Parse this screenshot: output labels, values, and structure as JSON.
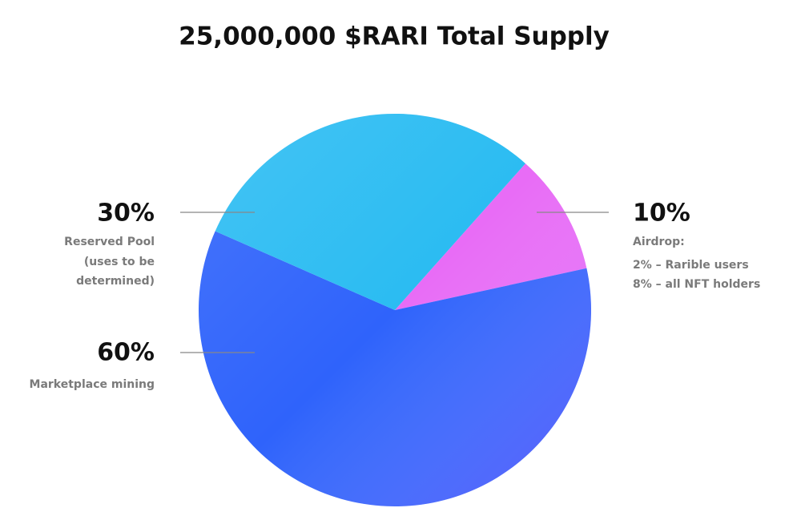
{
  "chart_data": {
    "type": "pie",
    "title": "25,000,000 $RARI Total Supply",
    "categories": [
      "Airdrop:",
      "Marketplace mining",
      "Reserved Pool"
    ],
    "sublabels": [
      [
        "2% – Rarible users",
        "8% – all NFT holders"
      ],
      [],
      [
        "(uses to be",
        "determined)"
      ]
    ],
    "values": [
      10,
      60,
      30
    ],
    "value_labels": [
      "10%",
      "60%",
      "30%"
    ],
    "colors": [
      "#e86cf6",
      "#2f63fb",
      "#2bbcf2"
    ]
  }
}
